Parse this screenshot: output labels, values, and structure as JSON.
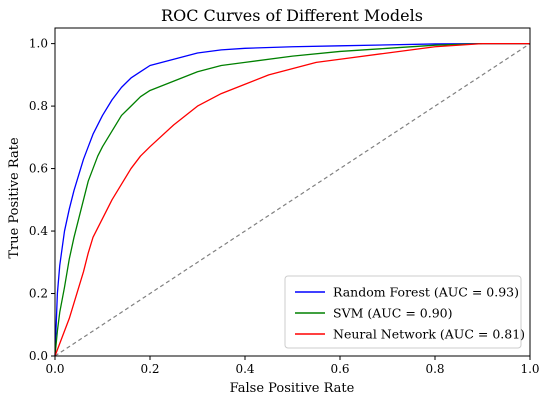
{
  "chart_data": {
    "type": "line",
    "title": "ROC Curves of Different Models",
    "xlabel": "False Positive Rate",
    "ylabel": "True Positive Rate",
    "xlim": [
      0.0,
      1.0
    ],
    "ylim": [
      0.0,
      1.05
    ],
    "xticks": [
      "0.0",
      "0.2",
      "0.4",
      "0.6",
      "0.8",
      "1.0"
    ],
    "yticks": [
      "0.0",
      "0.2",
      "0.4",
      "0.6",
      "0.8",
      "1.0"
    ],
    "grid": false,
    "legend_position": "lower-right",
    "series": [
      {
        "name": "Random Forest (AUC = 0.93)",
        "color": "#0000ff",
        "x": [
          0.0,
          0.005,
          0.01,
          0.02,
          0.03,
          0.04,
          0.05,
          0.06,
          0.07,
          0.08,
          0.09,
          0.1,
          0.12,
          0.14,
          0.16,
          0.18,
          0.2,
          0.25,
          0.3,
          0.35,
          0.4,
          0.5,
          0.6,
          0.7,
          0.8,
          0.9,
          1.0
        ],
        "y": [
          0.0,
          0.2,
          0.29,
          0.4,
          0.47,
          0.53,
          0.58,
          0.63,
          0.67,
          0.71,
          0.74,
          0.77,
          0.82,
          0.86,
          0.89,
          0.91,
          0.93,
          0.95,
          0.97,
          0.98,
          0.985,
          0.99,
          0.993,
          0.996,
          0.999,
          1.0,
          1.0
        ]
      },
      {
        "name": "SVM (AUC = 0.90)",
        "color": "#008000",
        "x": [
          0.0,
          0.005,
          0.01,
          0.02,
          0.03,
          0.04,
          0.05,
          0.06,
          0.07,
          0.08,
          0.09,
          0.1,
          0.12,
          0.14,
          0.16,
          0.18,
          0.2,
          0.25,
          0.3,
          0.35,
          0.4,
          0.5,
          0.6,
          0.7,
          0.8,
          0.9,
          1.0
        ],
        "y": [
          0.0,
          0.08,
          0.14,
          0.22,
          0.31,
          0.38,
          0.44,
          0.5,
          0.56,
          0.6,
          0.64,
          0.67,
          0.72,
          0.77,
          0.8,
          0.83,
          0.85,
          0.88,
          0.91,
          0.93,
          0.94,
          0.96,
          0.975,
          0.985,
          0.995,
          1.0,
          1.0
        ]
      },
      {
        "name": "Neural Network (AUC = 0.81)",
        "color": "#ff0000",
        "x": [
          0.0,
          0.01,
          0.02,
          0.03,
          0.04,
          0.05,
          0.06,
          0.07,
          0.08,
          0.1,
          0.12,
          0.14,
          0.16,
          0.18,
          0.2,
          0.25,
          0.3,
          0.35,
          0.4,
          0.45,
          0.5,
          0.55,
          0.6,
          0.7,
          0.8,
          0.9,
          1.0
        ],
        "y": [
          0.0,
          0.04,
          0.08,
          0.12,
          0.17,
          0.22,
          0.27,
          0.33,
          0.38,
          0.44,
          0.5,
          0.55,
          0.6,
          0.64,
          0.67,
          0.74,
          0.8,
          0.84,
          0.87,
          0.9,
          0.92,
          0.94,
          0.95,
          0.97,
          0.99,
          1.0,
          1.0
        ]
      }
    ],
    "reference_line": {
      "x": [
        0.0,
        1.0
      ],
      "y": [
        0.0,
        1.0
      ],
      "color": "#808080",
      "style": "dashed"
    }
  }
}
